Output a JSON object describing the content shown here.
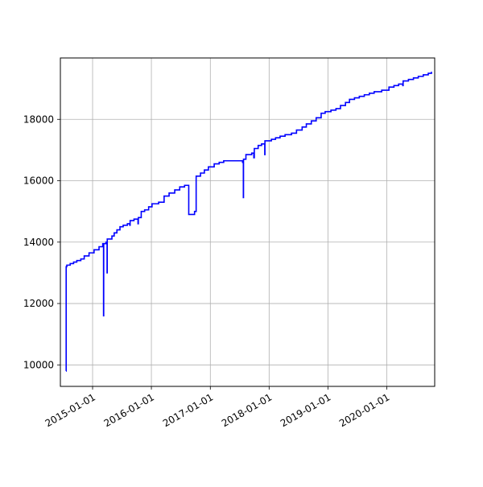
{
  "chart_data": {
    "type": "line",
    "title": "",
    "xlabel": "",
    "ylabel": "",
    "x_tick_labels": [
      "2015-01-01",
      "2016-01-01",
      "2017-01-01",
      "2018-01-01",
      "2019-01-01",
      "2020-01-01"
    ],
    "y_tick_labels": [
      "10000",
      "12000",
      "14000",
      "16000",
      "18000"
    ],
    "xlim": [
      "2014-06-15",
      "2020-10-25"
    ],
    "ylim": [
      9300,
      20000
    ],
    "grid": true,
    "legend": "none",
    "series": [
      {
        "color": "#0000ff",
        "step": true,
        "points": [
          [
            "2014-07-20",
            9800
          ],
          [
            "2014-07-21",
            13200
          ],
          [
            "2014-07-25",
            13250
          ],
          [
            "2014-08-15",
            13300
          ],
          [
            "2014-09-05",
            13350
          ],
          [
            "2014-09-25",
            13400
          ],
          [
            "2014-10-20",
            13450
          ],
          [
            "2014-11-10",
            13550
          ],
          [
            "2014-12-10",
            13650
          ],
          [
            "2015-01-10",
            13750
          ],
          [
            "2015-02-10",
            13850
          ],
          [
            "2015-03-05",
            13950
          ],
          [
            "2015-03-10",
            11600
          ],
          [
            "2015-03-11",
            13950
          ],
          [
            "2015-03-25",
            14000
          ],
          [
            "2015-04-01",
            13000
          ],
          [
            "2015-04-02",
            14100
          ],
          [
            "2015-05-01",
            14200
          ],
          [
            "2015-05-15",
            14300
          ],
          [
            "2015-06-01",
            14400
          ],
          [
            "2015-06-20",
            14500
          ],
          [
            "2015-07-10",
            14550
          ],
          [
            "2015-08-05",
            14600
          ],
          [
            "2015-08-20",
            14550
          ],
          [
            "2015-08-22",
            14700
          ],
          [
            "2015-09-15",
            14750
          ],
          [
            "2015-10-10",
            14600
          ],
          [
            "2015-10-12",
            14800
          ],
          [
            "2015-10-30",
            15000
          ],
          [
            "2015-11-20",
            15050
          ],
          [
            "2015-12-15",
            15150
          ],
          [
            "2016-01-05",
            15250
          ],
          [
            "2016-02-15",
            15300
          ],
          [
            "2016-03-20",
            15500
          ],
          [
            "2016-04-20",
            15600
          ],
          [
            "2016-05-25",
            15700
          ],
          [
            "2016-06-25",
            15800
          ],
          [
            "2016-07-25",
            15850
          ],
          [
            "2016-08-10",
            15850
          ],
          [
            "2016-08-20",
            14900
          ],
          [
            "2016-09-25",
            15000
          ],
          [
            "2016-10-05",
            16150
          ],
          [
            "2016-11-01",
            16250
          ],
          [
            "2016-11-25",
            16350
          ],
          [
            "2016-12-20",
            16450
          ],
          [
            "2017-01-25",
            16550
          ],
          [
            "2017-02-25",
            16600
          ],
          [
            "2017-03-25",
            16650
          ],
          [
            "2017-06-15",
            16650
          ],
          [
            "2017-07-20",
            16600
          ],
          [
            "2017-07-25",
            15450
          ],
          [
            "2017-07-26",
            16700
          ],
          [
            "2017-08-10",
            16850
          ],
          [
            "2017-09-15",
            16900
          ],
          [
            "2017-09-28",
            16750
          ],
          [
            "2017-10-01",
            17050
          ],
          [
            "2017-10-25",
            17150
          ],
          [
            "2017-11-15",
            17200
          ],
          [
            "2017-12-05",
            16850
          ],
          [
            "2017-12-06",
            17300
          ],
          [
            "2018-01-15",
            17350
          ],
          [
            "2018-02-10",
            17400
          ],
          [
            "2018-03-10",
            17450
          ],
          [
            "2018-04-10",
            17500
          ],
          [
            "2018-05-20",
            17550
          ],
          [
            "2018-06-20",
            17650
          ],
          [
            "2018-07-25",
            17750
          ],
          [
            "2018-08-20",
            17850
          ],
          [
            "2018-09-20",
            17950
          ],
          [
            "2018-10-20",
            18050
          ],
          [
            "2018-11-20",
            18200
          ],
          [
            "2018-12-15",
            18250
          ],
          [
            "2019-01-20",
            18300
          ],
          [
            "2019-02-20",
            18350
          ],
          [
            "2019-03-20",
            18450
          ],
          [
            "2019-04-20",
            18550
          ],
          [
            "2019-05-15",
            18650
          ],
          [
            "2019-06-15",
            18700
          ],
          [
            "2019-07-15",
            18750
          ],
          [
            "2019-08-15",
            18800
          ],
          [
            "2019-09-15",
            18850
          ],
          [
            "2019-10-15",
            18900
          ],
          [
            "2019-12-01",
            18950
          ],
          [
            "2020-01-15",
            19050
          ],
          [
            "2020-02-15",
            19100
          ],
          [
            "2020-03-15",
            19150
          ],
          [
            "2020-04-10",
            19100
          ],
          [
            "2020-04-12",
            19250
          ],
          [
            "2020-05-15",
            19300
          ],
          [
            "2020-06-15",
            19350
          ],
          [
            "2020-07-15",
            19400
          ],
          [
            "2020-08-15",
            19450
          ],
          [
            "2020-09-15",
            19500
          ],
          [
            "2020-10-05",
            19550
          ]
        ]
      }
    ]
  }
}
